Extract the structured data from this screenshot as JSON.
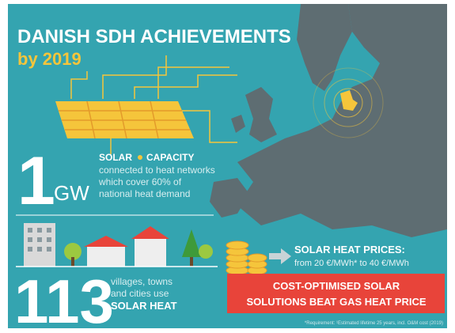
{
  "header": {
    "title": "DANISH SDH ACHIEVEMENTS",
    "subtitle": "by 2019"
  },
  "capacity": {
    "number": "1",
    "unit": "GW",
    "label_1": "SOLAR",
    "label_2": "CAPACITY",
    "description": [
      "connected to heat networks",
      "which cover 60% of",
      "national heat demand"
    ]
  },
  "towns": {
    "number": "113",
    "description": [
      "villages, towns",
      "and cities use"
    ],
    "highlight": "SOLAR HEAT"
  },
  "prices": {
    "title": "SOLAR HEAT PRICES:",
    "range": "from 20 €/MWh* to 40 €/MWh"
  },
  "banner": [
    "COST-OPTIMISED SOLAR",
    "SOLUTIONS BEAT GAS HEAT PRICE"
  ],
  "footnote": "*Requirement: ¹Estimated lifetime 25 years, incl. O&M cost (2019)"
}
